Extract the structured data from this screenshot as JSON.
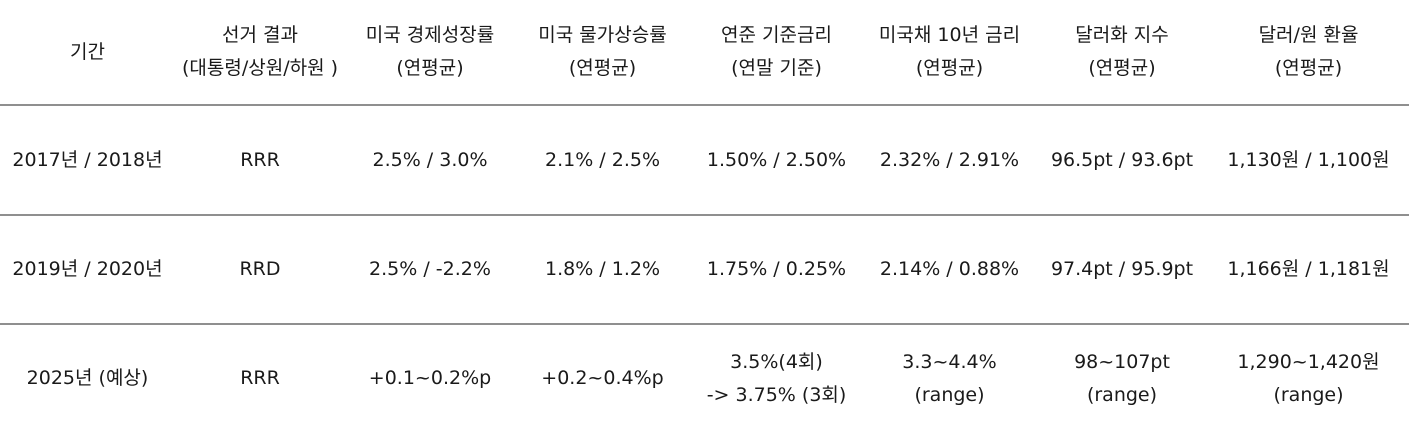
{
  "header": [
    [
      "기간"
    ],
    [
      "선거 결과",
      "(대통령/상원/하원 )"
    ],
    [
      "미국 경제성장률",
      "(연평균)"
    ],
    [
      "미국 물가상승률",
      "(연평균)"
    ],
    [
      "연준 기준금리",
      "(연말 기준)"
    ],
    [
      "미국채 10년 금리",
      "(연평균)"
    ],
    [
      "달러화 지수",
      "(연평균)"
    ],
    [
      "달러/원 환율",
      "(연평균)"
    ]
  ],
  "rows": [
    [
      [
        "2017년 / 2018년"
      ],
      [
        "RRR"
      ],
      [
        "2.5% / 3.0%"
      ],
      [
        "2.1% / 2.5%"
      ],
      [
        "1.50% / 2.50%"
      ],
      [
        "2.32% / 2.91%"
      ],
      [
        "96.5pt / 93.6pt"
      ],
      [
        "1,130원 / 1,100원"
      ]
    ],
    [
      [
        "2019년 / 2020년"
      ],
      [
        "RRD"
      ],
      [
        "2.5% / -2.2%"
      ],
      [
        "1.8% / 1.2%"
      ],
      [
        "1.75% / 0.25%"
      ],
      [
        "2.14% / 0.88%"
      ],
      [
        "97.4pt / 95.9pt"
      ],
      [
        "1,166원 / 1,181원"
      ]
    ],
    [
      [
        "2025년 (예상)"
      ],
      [
        "RRR"
      ],
      [
        "+0.1~0.2%p"
      ],
      [
        "+0.2~0.4%p"
      ],
      [
        "3.5%(4회)",
        "-> 3.75% (3회)"
      ],
      [
        "3.3~4.4%",
        "(range)"
      ],
      [
        "98~107pt",
        "(range)"
      ],
      [
        "1,290~1,420원",
        "(range)"
      ]
    ]
  ]
}
